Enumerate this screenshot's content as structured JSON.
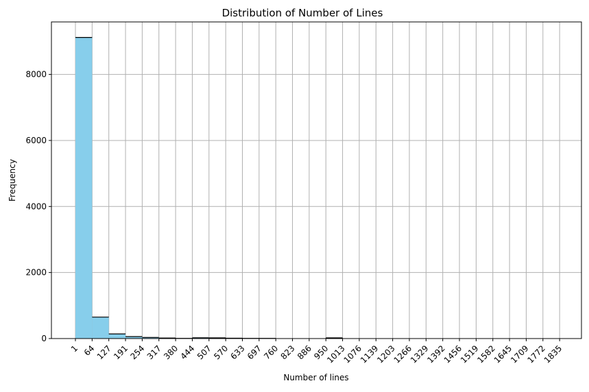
{
  "chart_data": {
    "type": "bar",
    "title": "Distribution of Number of Lines",
    "xlabel": "Number of lines",
    "ylabel": "Frequency",
    "x_ticks": [
      "1",
      "64",
      "127",
      "191",
      "254",
      "317",
      "380",
      "444",
      "507",
      "570",
      "633",
      "697",
      "760",
      "823",
      "886",
      "950",
      "1013",
      "1076",
      "1139",
      "1203",
      "1266",
      "1329",
      "1392",
      "1456",
      "1519",
      "1582",
      "1645",
      "1709",
      "1772",
      "1835"
    ],
    "y_ticks": [
      "0",
      "2000",
      "4000",
      "6000",
      "8000"
    ],
    "values": [
      9120,
      650,
      140,
      60,
      35,
      15,
      5,
      25,
      20,
      10,
      5,
      5,
      0,
      0,
      0,
      20,
      0,
      0,
      0,
      0,
      0,
      0,
      0,
      0,
      0,
      0,
      0,
      0,
      0
    ],
    "ylim": [
      0,
      9590
    ],
    "grid": true,
    "bar_color": "#87ceeb",
    "bar_edge_color": "#000000",
    "grid_color": "#b0b0b0"
  }
}
